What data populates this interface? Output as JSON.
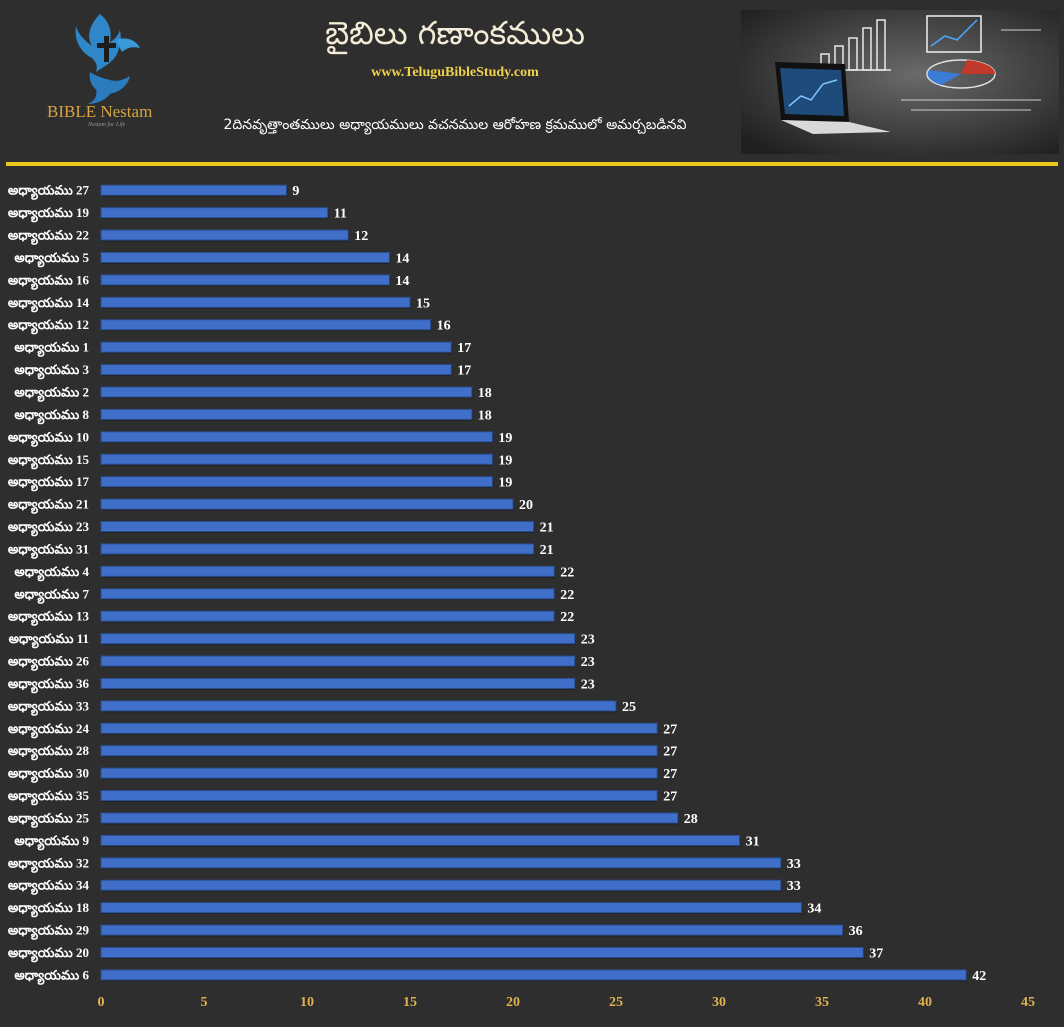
{
  "header": {
    "logo_text": "BIBLE Nestam",
    "logo_tagline": "Nestam for Life",
    "title": "బైబిలు గణాంకములు",
    "website": "www.TeluguBibleStudy.com",
    "subtitle": "2దినవృత్తాంతములు అధ్యాయములు వచనముల ఆరోహణ క్రమములో అమర్చబడినవి"
  },
  "colors": {
    "background": "#2e2e2e",
    "bar": "#3f6fc9",
    "bar_edge": "#2a4d8f",
    "divider": "#e8c81a",
    "title": "#f3ecd6",
    "website": "#f0d24a",
    "tick": "#e0b34c"
  },
  "chart_data": {
    "type": "bar",
    "orientation": "horizontal",
    "title": "2దినవృత్తాంతములు అధ్యాయములు వచనముల ఆరోహణ క్రమములో అమర్చబడినవి",
    "xlabel": "",
    "ylabel": "",
    "xlim": [
      0,
      45
    ],
    "xticks": [
      0,
      5,
      10,
      15,
      20,
      25,
      30,
      35,
      40,
      45
    ],
    "grid": false,
    "categories": [
      "అధ్యాయము 27",
      "అధ్యాయము 19",
      "అధ్యాయము 22",
      "అధ్యాయము 5",
      "అధ్యాయము 16",
      "అధ్యాయము 14",
      "అధ్యాయము 12",
      "అధ్యాయము 1",
      "అధ్యాయము 3",
      "అధ్యాయము 2",
      "అధ్యాయము 8",
      "అధ్యాయము 10",
      "అధ్యాయము 15",
      "అధ్యాయము 17",
      "అధ్యాయము 21",
      "అధ్యాయము 23",
      "అధ్యాయము 31",
      "అధ్యాయము 4",
      "అధ్యాయము 7",
      "అధ్యాయము 13",
      "అధ్యాయము 11",
      "అధ్యాయము 26",
      "అధ్యాయము 36",
      "అధ్యాయము 33",
      "అధ్యాయము 24",
      "అధ్యాయము 28",
      "అధ్యాయము 30",
      "అధ్యాయము 35",
      "అధ్యాయము 25",
      "అధ్యాయము 9",
      "అధ్యాయము 32",
      "అధ్యాయము 34",
      "అధ్యాయము 18",
      "అధ్యాయము 29",
      "అధ్యాయము 20",
      "అధ్యాయము 6"
    ],
    "values": [
      9,
      11,
      12,
      14,
      14,
      15,
      16,
      17,
      17,
      18,
      18,
      19,
      19,
      19,
      20,
      21,
      21,
      22,
      22,
      22,
      23,
      23,
      23,
      25,
      27,
      27,
      27,
      27,
      28,
      31,
      33,
      33,
      34,
      36,
      37,
      42
    ]
  }
}
